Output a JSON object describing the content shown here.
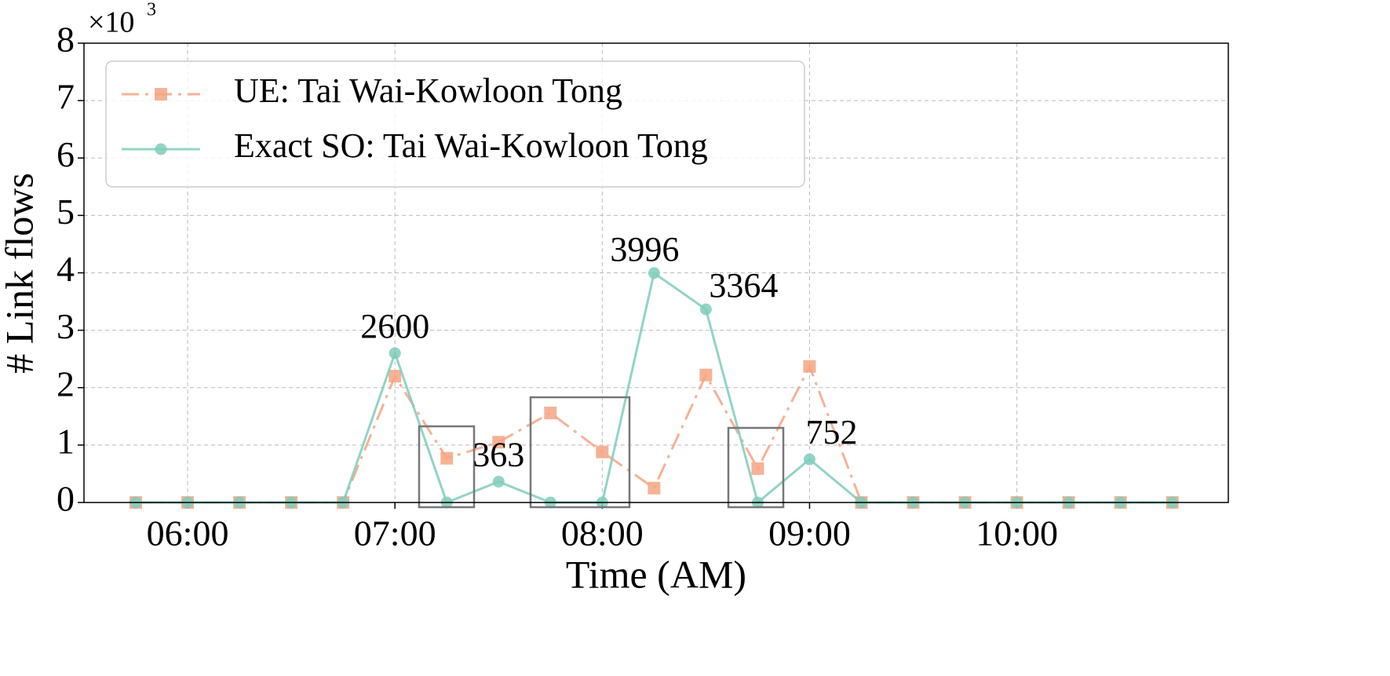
{
  "chart_data": {
    "type": "line",
    "xlabel": "Time (AM)",
    "ylabel": "# Link flows",
    "y_scale_base": "×10",
    "y_scale_exponent": "3",
    "x": [
      5.75,
      6.0,
      6.25,
      6.5,
      6.75,
      7.0,
      7.25,
      7.5,
      7.75,
      8.0,
      8.25,
      8.5,
      8.75,
      9.0,
      9.25,
      9.5,
      9.75,
      10.0,
      10.25,
      10.5,
      10.75
    ],
    "series": [
      {
        "name": "UE: Tai Wai-Kowloon Tong",
        "color": "#f4a582",
        "marker": "square",
        "linestyle": "dashdot",
        "values": [
          0,
          0,
          0,
          0,
          0,
          2.2,
          0.77,
          1.05,
          1.56,
          0.88,
          0.25,
          2.22,
          0.59,
          2.37,
          0,
          0,
          0,
          0,
          0,
          0,
          0
        ]
      },
      {
        "name": "Exact SO: Tai Wai-Kowloon Tong",
        "color": "#7fcdbb",
        "marker": "circle",
        "linestyle": "solid",
        "values": [
          0,
          0,
          0,
          0,
          0,
          2.6,
          0,
          0.363,
          0,
          0,
          3.996,
          3.364,
          0,
          0.752,
          0,
          0,
          0,
          0,
          0,
          0,
          0
        ],
        "value_labels": [
          null,
          null,
          null,
          null,
          null,
          "2600",
          null,
          "363",
          null,
          null,
          "3996",
          "3364",
          null,
          "752",
          null,
          null,
          null,
          null,
          null,
          null,
          null
        ]
      }
    ],
    "xlim": [
      5.5,
      11.02
    ],
    "xticks": [
      {
        "value": 6,
        "label": "06:00"
      },
      {
        "value": 7,
        "label": "07:00"
      },
      {
        "value": 8,
        "label": "08:00"
      },
      {
        "value": 9,
        "label": "09:00"
      },
      {
        "value": 10,
        "label": "10:00"
      }
    ],
    "ylim": [
      0,
      8
    ],
    "yticks": [
      0,
      1,
      2,
      3,
      4,
      5,
      6,
      7,
      8
    ],
    "grid": true,
    "legend": "upper left"
  }
}
